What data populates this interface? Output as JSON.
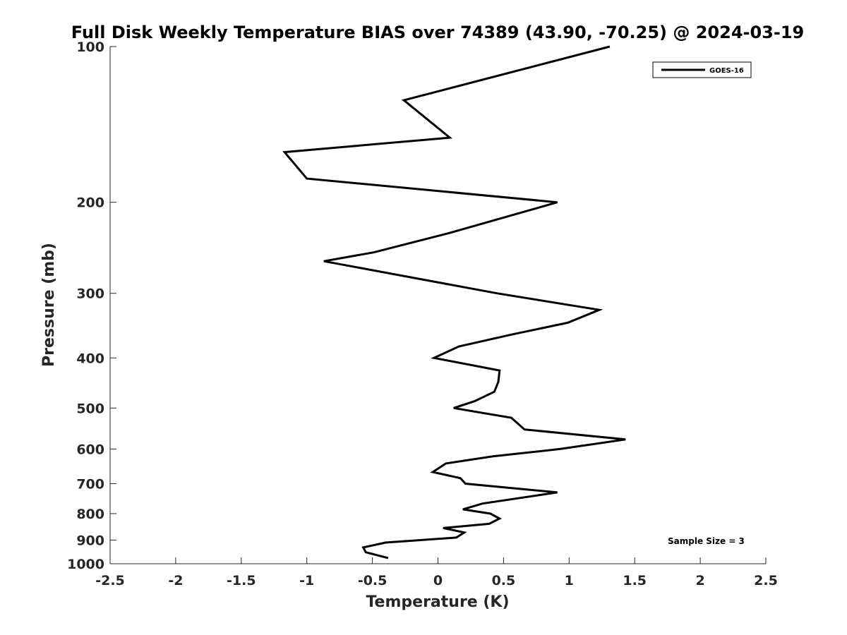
{
  "chart_data": {
    "type": "line",
    "title": "Full Disk Weekly Temperature BIAS over 74389 (43.90, -70.25) @ 2024-03-19",
    "xlabel": "Temperature (K)",
    "ylabel": "Pressure (mb)",
    "xlim": [
      -2.5,
      2.5
    ],
    "ylim": [
      1000,
      100
    ],
    "yscale": "log",
    "xticks": [
      -2.5,
      -2,
      -1.5,
      -1,
      -0.5,
      0,
      0.5,
      1,
      1.5,
      2,
      2.5
    ],
    "xtick_labels": [
      "-2.5",
      "-2",
      "-1.5",
      "-1",
      "-0.5",
      "0",
      "0.5",
      "1",
      "1.5",
      "2",
      "2.5"
    ],
    "yticks": [
      100,
      200,
      300,
      400,
      500,
      600,
      700,
      800,
      900,
      1000
    ],
    "ytick_labels": [
      "100",
      "200",
      "300",
      "400",
      "500",
      "600",
      "700",
      "800",
      "900",
      "1000"
    ],
    "grid": false,
    "legend": {
      "placement": "top-right",
      "entries": [
        "GOES-16"
      ]
    },
    "annotation": "Sample Size = 3",
    "series": [
      {
        "name": "GOES-16",
        "color": "#000000",
        "x": [
          1.31,
          -0.26,
          0.09,
          -1.17,
          -1.0,
          0.91,
          0.07,
          -0.49,
          -0.87,
          0.45,
          1.23,
          0.99,
          0.57,
          0.16,
          -0.03,
          0.47,
          0.46,
          0.43,
          0.28,
          0.12,
          0.56,
          0.66,
          1.43,
          0.93,
          0.42,
          0.06,
          -0.04,
          0.17,
          0.21,
          0.91,
          0.34,
          0.19,
          0.4,
          0.47,
          0.39,
          0.04,
          0.2,
          0.14,
          -0.4,
          -0.57,
          -0.55,
          -0.38
        ],
        "y": [
          100,
          127,
          150,
          160,
          180,
          200,
          230,
          250,
          260,
          300,
          323,
          342,
          360,
          380,
          400,
          423,
          445,
          465,
          485,
          500,
          522,
          550,
          575,
          600,
          620,
          640,
          665,
          683,
          700,
          728,
          765,
          785,
          800,
          818,
          837,
          853,
          870,
          890,
          910,
          930,
          950,
          975
        ]
      }
    ]
  }
}
